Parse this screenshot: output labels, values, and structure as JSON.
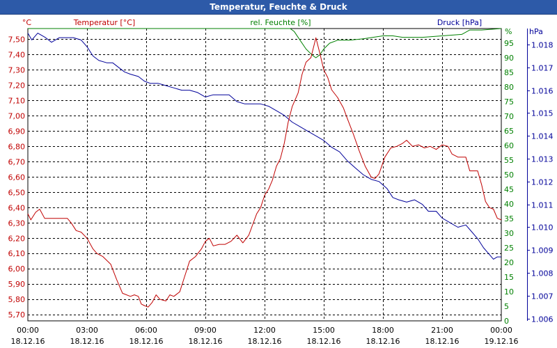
{
  "window": {
    "title": "Temperatur, Feuchte & Druck"
  },
  "colors": {
    "temperature": "#c00000",
    "humidity": "#008000",
    "pressure": "#000099",
    "title_bg": "#2d5aa8",
    "grid": "#000000"
  },
  "chart_data": {
    "type": "line",
    "title": "Temperatur, Feuchte & Druck",
    "x_ticks": [
      {
        "time": "00:00",
        "date": "18.12.16"
      },
      {
        "time": "03:00",
        "date": "18.12.16"
      },
      {
        "time": "06:00",
        "date": "18.12.16"
      },
      {
        "time": "09:00",
        "date": "18.12.16"
      },
      {
        "time": "12:00",
        "date": "18.12.16"
      },
      {
        "time": "15:00",
        "date": "18.12.16"
      },
      {
        "time": "18:00",
        "date": "18.12.16"
      },
      {
        "time": "21:00",
        "date": "18.12.16"
      },
      {
        "time": "00:00",
        "date": "19.12.16"
      }
    ],
    "xlim_hours": [
      0,
      24
    ],
    "axes": {
      "temperature": {
        "label": "Temperatur [°C]",
        "unit": "°C",
        "ylim": [
          5.66,
          7.57
        ],
        "ticks": [
          "7,50",
          "7,40",
          "7,30",
          "7,20",
          "7,10",
          "7,00",
          "6,90",
          "6,80",
          "6,70",
          "6,60",
          "6,50",
          "6,40",
          "6,30",
          "6,20",
          "6,10",
          "6,00",
          "5,90",
          "5,80",
          "5,70"
        ]
      },
      "humidity": {
        "label": "rel. Feuchte [%]",
        "unit": "%",
        "ylim": [
          0,
          100
        ],
        "ticks": [
          "95",
          "90",
          "85",
          "80",
          "75",
          "70",
          "65",
          "60",
          "55",
          "50",
          "45",
          "40",
          "35",
          "30",
          "25",
          "20",
          "15",
          "10",
          "5",
          "0"
        ]
      },
      "pressure": {
        "label": "Druck [hPa]",
        "unit": "hPa",
        "ylim": [
          1.0059,
          1.0187
        ],
        "ticks": [
          "1.018",
          "1.017",
          "1.016",
          "1.015",
          "1.014",
          "1.013",
          "1.012",
          "1.011",
          "1.010",
          "1.009",
          "1.008",
          "1.007",
          "1.006"
        ]
      }
    },
    "series": [
      {
        "name": "Temperatur [°C]",
        "axis": "temperature",
        "color": "#c00000",
        "points": [
          [
            0,
            6.36
          ],
          [
            0.15,
            6.32
          ],
          [
            0.4,
            6.37
          ],
          [
            0.6,
            6.39
          ],
          [
            0.85,
            6.33
          ],
          [
            1.5,
            6.33
          ],
          [
            1.8,
            6.33
          ],
          [
            2.0,
            6.33
          ],
          [
            2.2,
            6.3
          ],
          [
            2.45,
            6.25
          ],
          [
            2.7,
            6.24
          ],
          [
            3.0,
            6.2
          ],
          [
            3.3,
            6.13
          ],
          [
            3.5,
            6.1
          ],
          [
            3.8,
            6.08
          ],
          [
            4.2,
            6.03
          ],
          [
            4.5,
            5.93
          ],
          [
            4.8,
            5.84
          ],
          [
            5.2,
            5.82
          ],
          [
            5.4,
            5.83
          ],
          [
            5.6,
            5.82
          ],
          [
            5.75,
            5.77
          ],
          [
            5.9,
            5.76
          ],
          [
            6.1,
            5.75
          ],
          [
            6.3,
            5.78
          ],
          [
            6.5,
            5.83
          ],
          [
            6.7,
            5.8
          ],
          [
            7.0,
            5.79
          ],
          [
            7.2,
            5.83
          ],
          [
            7.4,
            5.82
          ],
          [
            7.7,
            5.85
          ],
          [
            7.9,
            5.93
          ],
          [
            8.2,
            6.05
          ],
          [
            8.5,
            6.08
          ],
          [
            8.8,
            6.13
          ],
          [
            9.0,
            6.18
          ],
          [
            9.2,
            6.2
          ],
          [
            9.4,
            6.15
          ],
          [
            9.7,
            6.16
          ],
          [
            10.0,
            6.16
          ],
          [
            10.3,
            6.18
          ],
          [
            10.6,
            6.22
          ],
          [
            10.9,
            6.17
          ],
          [
            11.2,
            6.22
          ],
          [
            11.4,
            6.29
          ],
          [
            11.6,
            6.36
          ],
          [
            11.8,
            6.4
          ],
          [
            12.0,
            6.48
          ],
          [
            12.2,
            6.52
          ],
          [
            12.4,
            6.58
          ],
          [
            12.6,
            6.67
          ],
          [
            12.8,
            6.72
          ],
          [
            13.0,
            6.82
          ],
          [
            13.2,
            6.96
          ],
          [
            13.4,
            7.06
          ],
          [
            13.7,
            7.15
          ],
          [
            13.9,
            7.27
          ],
          [
            14.1,
            7.35
          ],
          [
            14.35,
            7.38
          ],
          [
            14.6,
            7.51
          ],
          [
            14.8,
            7.41
          ],
          [
            15.0,
            7.3
          ],
          [
            15.2,
            7.25
          ],
          [
            15.4,
            7.17
          ],
          [
            15.7,
            7.12
          ],
          [
            16.0,
            7.05
          ],
          [
            16.2,
            6.98
          ],
          [
            16.5,
            6.88
          ],
          [
            16.8,
            6.77
          ],
          [
            17.1,
            6.67
          ],
          [
            17.4,
            6.6
          ],
          [
            17.6,
            6.59
          ],
          [
            17.8,
            6.62
          ],
          [
            18.1,
            6.73
          ],
          [
            18.4,
            6.79
          ],
          [
            18.7,
            6.8
          ],
          [
            19.0,
            6.82
          ],
          [
            19.2,
            6.84
          ],
          [
            19.5,
            6.8
          ],
          [
            19.8,
            6.81
          ],
          [
            20.1,
            6.79
          ],
          [
            20.4,
            6.8
          ],
          [
            20.7,
            6.78
          ],
          [
            21.0,
            6.81
          ],
          [
            21.3,
            6.8
          ],
          [
            21.5,
            6.75
          ],
          [
            21.8,
            6.73
          ],
          [
            22.2,
            6.73
          ],
          [
            22.4,
            6.64
          ],
          [
            22.8,
            6.64
          ],
          [
            23.0,
            6.55
          ],
          [
            23.2,
            6.44
          ],
          [
            23.4,
            6.4
          ],
          [
            23.6,
            6.39
          ],
          [
            23.8,
            6.33
          ],
          [
            24.0,
            6.32
          ]
        ]
      },
      {
        "name": "rel. Feuchte [%]",
        "axis": "humidity",
        "color": "#008000",
        "points": [
          [
            0,
            100
          ],
          [
            13.0,
            100
          ],
          [
            13.3,
            100
          ],
          [
            13.5,
            99
          ],
          [
            13.8,
            96
          ],
          [
            14.1,
            93
          ],
          [
            14.4,
            91
          ],
          [
            14.6,
            90
          ],
          [
            14.8,
            91
          ],
          [
            15.0,
            93
          ],
          [
            15.3,
            95
          ],
          [
            15.7,
            96
          ],
          [
            16.3,
            96
          ],
          [
            17.0,
            96.5
          ],
          [
            17.5,
            97
          ],
          [
            18.0,
            97.5
          ],
          [
            18.5,
            97.5
          ],
          [
            19.0,
            97
          ],
          [
            20.0,
            97
          ],
          [
            21.0,
            97.5
          ],
          [
            22.0,
            98
          ],
          [
            22.4,
            99.5
          ],
          [
            23.0,
            99.5
          ],
          [
            24.0,
            100
          ]
        ]
      },
      {
        "name": "Druck [hPa]",
        "axis": "pressure",
        "color": "#000099",
        "points": [
          [
            0,
            1.0185
          ],
          [
            0.2,
            1.0182
          ],
          [
            0.5,
            1.0185
          ],
          [
            0.9,
            1.0183
          ],
          [
            1.2,
            1.0181
          ],
          [
            1.6,
            1.0183
          ],
          [
            2.0,
            1.0183
          ],
          [
            2.3,
            1.0183
          ],
          [
            2.7,
            1.0182
          ],
          [
            3.0,
            1.0179
          ],
          [
            3.3,
            1.0175
          ],
          [
            3.6,
            1.0173
          ],
          [
            4.0,
            1.0172
          ],
          [
            4.3,
            1.0172
          ],
          [
            4.6,
            1.017
          ],
          [
            4.9,
            1.0168
          ],
          [
            5.2,
            1.0167
          ],
          [
            5.6,
            1.0166
          ],
          [
            5.9,
            1.0164
          ],
          [
            6.2,
            1.0163
          ],
          [
            6.6,
            1.0163
          ],
          [
            7.0,
            1.0162
          ],
          [
            7.4,
            1.0161
          ],
          [
            7.8,
            1.016
          ],
          [
            8.2,
            1.016
          ],
          [
            8.6,
            1.0159
          ],
          [
            9.0,
            1.0157
          ],
          [
            9.4,
            1.0158
          ],
          [
            9.8,
            1.0158
          ],
          [
            10.2,
            1.0158
          ],
          [
            10.6,
            1.0155
          ],
          [
            11.0,
            1.0154
          ],
          [
            11.4,
            1.0154
          ],
          [
            11.8,
            1.0154
          ],
          [
            12.2,
            1.0153
          ],
          [
            12.6,
            1.0151
          ],
          [
            13.0,
            1.0149
          ],
          [
            13.4,
            1.0146
          ],
          [
            13.8,
            1.0144
          ],
          [
            14.2,
            1.0142
          ],
          [
            14.6,
            1.014
          ],
          [
            15.0,
            1.0138
          ],
          [
            15.4,
            1.0135
          ],
          [
            15.8,
            1.0133
          ],
          [
            16.2,
            1.0129
          ],
          [
            16.6,
            1.0126
          ],
          [
            17.0,
            1.0123
          ],
          [
            17.4,
            1.0121
          ],
          [
            17.8,
            1.012
          ],
          [
            18.2,
            1.0117
          ],
          [
            18.5,
            1.0113
          ],
          [
            18.8,
            1.0112
          ],
          [
            19.2,
            1.0111
          ],
          [
            19.6,
            1.0112
          ],
          [
            20.0,
            1.011
          ],
          [
            20.3,
            1.0107
          ],
          [
            20.7,
            1.0107
          ],
          [
            21.0,
            1.0104
          ],
          [
            21.4,
            1.0102
          ],
          [
            21.8,
            1.01
          ],
          [
            22.2,
            1.0101
          ],
          [
            22.5,
            1.0098
          ],
          [
            22.8,
            1.0095
          ],
          [
            23.1,
            1.0091
          ],
          [
            23.4,
            1.0088
          ],
          [
            23.6,
            1.0086
          ],
          [
            23.8,
            1.0087
          ],
          [
            24.0,
            1.0087
          ]
        ]
      }
    ]
  }
}
